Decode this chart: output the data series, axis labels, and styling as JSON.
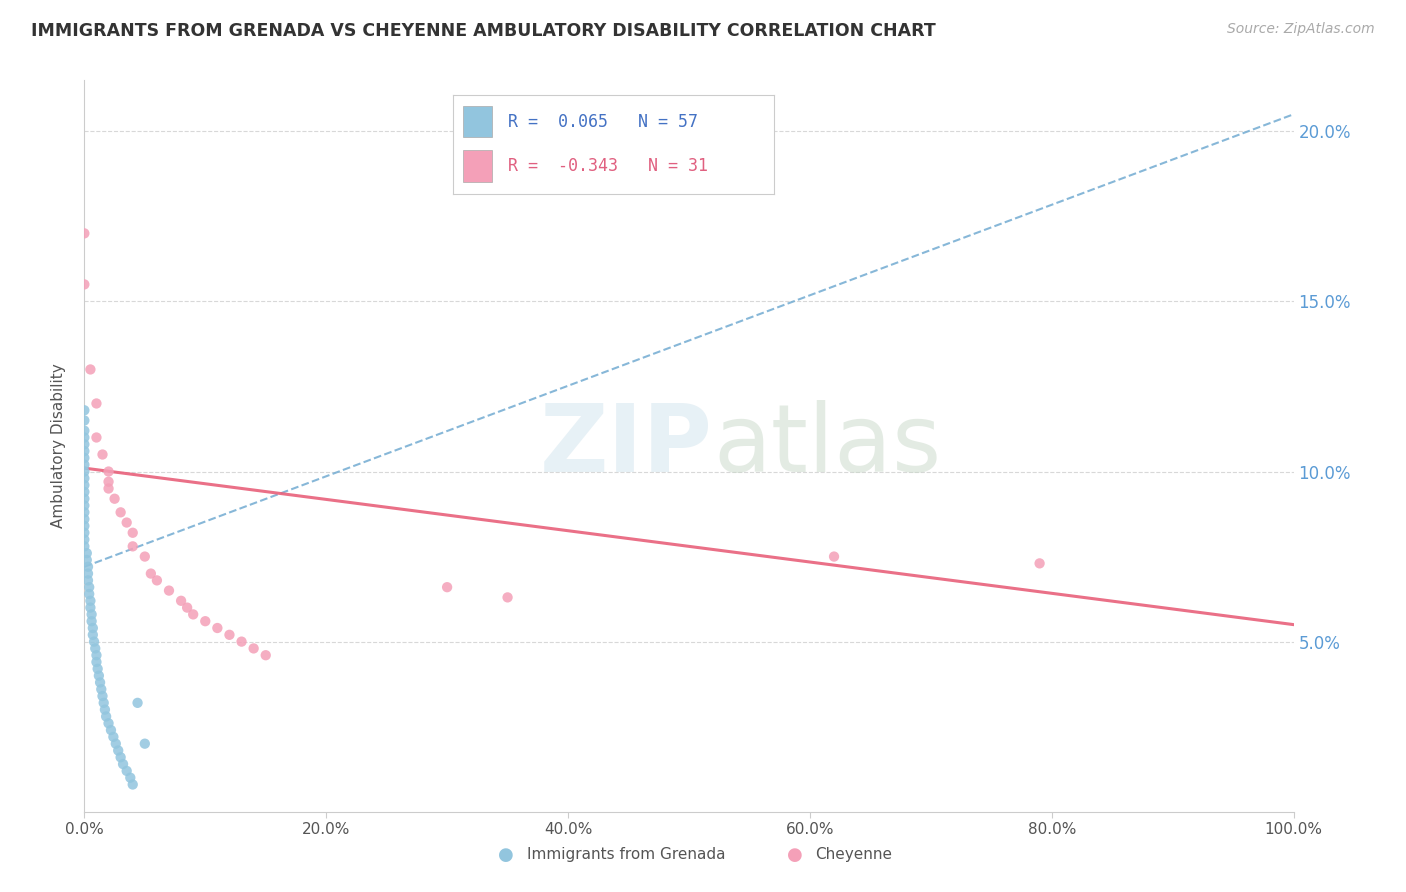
{
  "title": "IMMIGRANTS FROM GRENADA VS CHEYENNE AMBULATORY DISABILITY CORRELATION CHART",
  "source_text": "Source: ZipAtlas.com",
  "ylabel": "Ambulatory Disability",
  "watermark_zip": "ZIP",
  "watermark_atlas": "atlas",
  "legend_entries": [
    {
      "label": "Immigrants from Grenada",
      "R": "0.065",
      "N": "57",
      "color": "#a8cfe0"
    },
    {
      "label": "Cheyenne",
      "R": "-0.343",
      "N": "31",
      "color": "#f4b8c8"
    }
  ],
  "blue_scatter_x": [
    0.0,
    0.0,
    0.0,
    0.0,
    0.0,
    0.0,
    0.0,
    0.0,
    0.0,
    0.0,
    0.0,
    0.0,
    0.0,
    0.0,
    0.0,
    0.0,
    0.0,
    0.0,
    0.0,
    0.0,
    0.002,
    0.002,
    0.003,
    0.003,
    0.003,
    0.004,
    0.004,
    0.005,
    0.005,
    0.006,
    0.006,
    0.007,
    0.007,
    0.008,
    0.009,
    0.01,
    0.01,
    0.011,
    0.012,
    0.013,
    0.014,
    0.015,
    0.016,
    0.017,
    0.018,
    0.02,
    0.022,
    0.024,
    0.026,
    0.028,
    0.03,
    0.032,
    0.035,
    0.038,
    0.04,
    0.044,
    0.05
  ],
  "blue_scatter_y": [
    0.118,
    0.115,
    0.112,
    0.11,
    0.108,
    0.106,
    0.104,
    0.102,
    0.1,
    0.098,
    0.096,
    0.094,
    0.092,
    0.09,
    0.088,
    0.086,
    0.084,
    0.082,
    0.08,
    0.078,
    0.076,
    0.074,
    0.072,
    0.07,
    0.068,
    0.066,
    0.064,
    0.062,
    0.06,
    0.058,
    0.056,
    0.054,
    0.052,
    0.05,
    0.048,
    0.046,
    0.044,
    0.042,
    0.04,
    0.038,
    0.036,
    0.034,
    0.032,
    0.03,
    0.028,
    0.026,
    0.024,
    0.022,
    0.02,
    0.018,
    0.016,
    0.014,
    0.012,
    0.01,
    0.008,
    0.032,
    0.02
  ],
  "pink_scatter_x": [
    0.0,
    0.0,
    0.005,
    0.01,
    0.01,
    0.015,
    0.02,
    0.02,
    0.02,
    0.025,
    0.03,
    0.035,
    0.04,
    0.04,
    0.05,
    0.055,
    0.06,
    0.07,
    0.08,
    0.085,
    0.09,
    0.1,
    0.11,
    0.12,
    0.13,
    0.14,
    0.15,
    0.3,
    0.35,
    0.62,
    0.79
  ],
  "pink_scatter_y": [
    0.17,
    0.155,
    0.13,
    0.12,
    0.11,
    0.105,
    0.1,
    0.097,
    0.095,
    0.092,
    0.088,
    0.085,
    0.082,
    0.078,
    0.075,
    0.07,
    0.068,
    0.065,
    0.062,
    0.06,
    0.058,
    0.056,
    0.054,
    0.052,
    0.05,
    0.048,
    0.046,
    0.066,
    0.063,
    0.075,
    0.073
  ],
  "blue_trend_x": [
    0.0,
    1.0
  ],
  "blue_trend_y": [
    0.072,
    0.205
  ],
  "pink_trend_x": [
    0.0,
    1.0
  ],
  "pink_trend_y": [
    0.101,
    0.055
  ],
  "xlim": [
    0.0,
    1.0
  ],
  "ylim": [
    0.0,
    0.215
  ],
  "xtick_vals": [
    0.0,
    0.2,
    0.4,
    0.6,
    0.8,
    1.0
  ],
  "xtick_labels": [
    "0.0%",
    "20.0%",
    "40.0%",
    "60.0%",
    "80.0%",
    "100.0%"
  ],
  "ytick_vals": [
    0.05,
    0.1,
    0.15,
    0.2
  ],
  "ytick_labels": [
    "5.0%",
    "10.0%",
    "15.0%",
    "20.0%"
  ],
  "blue_color": "#92c5de",
  "pink_color": "#f4a0b8",
  "blue_trend_color": "#7ab0d4",
  "pink_trend_color": "#e8607a",
  "grid_color": "#d8d8d8",
  "background_color": "#ffffff"
}
